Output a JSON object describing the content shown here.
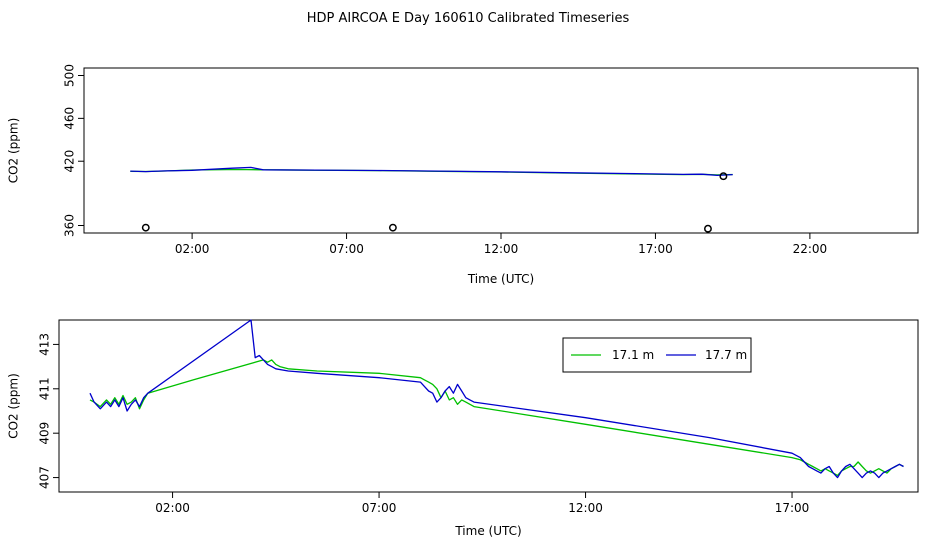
{
  "title": "HDP AIRCOA E  Day 160610  Calibrated Timeseries",
  "colors": {
    "green": "#00c000",
    "blue": "#0000cc",
    "black": "#000000"
  },
  "chart_data": [
    {
      "type": "line",
      "xlabel": "Time (UTC)",
      "ylabel": "CO2 (ppm)",
      "xlim": [
        -1.5,
        25.5
      ],
      "ylim": [
        353,
        507
      ],
      "x_ticks": [
        2,
        7,
        12,
        17,
        22
      ],
      "x_tick_labels": [
        "02:00",
        "07:00",
        "12:00",
        "17:00",
        "22:00"
      ],
      "y_ticks": [
        360,
        420,
        460,
        500
      ],
      "y_tick_labels": [
        "360",
        "420",
        "460",
        "500"
      ],
      "series": [
        {
          "color": "green",
          "x": [
            0,
            0.5,
            1,
            2,
            3.5,
            4.3,
            6,
            8,
            10,
            12,
            14,
            16,
            17.9,
            18.5,
            19.0,
            19.5
          ],
          "y": [
            410.5,
            410.4,
            410.8,
            411.8,
            412.3,
            412.0,
            411.6,
            411.2,
            410.6,
            409.9,
            409.0,
            408.2,
            407.5,
            407.8,
            407.2,
            407.6
          ]
        },
        {
          "color": "blue",
          "x": [
            0,
            0.5,
            1,
            2,
            3.3,
            3.9,
            4.3,
            6,
            8,
            10,
            12,
            14,
            16,
            17.9,
            18.5,
            19.0,
            19.5
          ],
          "y": [
            410.8,
            410.3,
            410.9,
            411.5,
            413.5,
            414.2,
            412.0,
            411.7,
            411.3,
            410.8,
            410.1,
            409.3,
            408.5,
            407.7,
            407.9,
            406.8,
            407.5
          ]
        },
        {
          "color": "black",
          "marker": "o",
          "x": [
            0.5,
            8.5,
            18.7,
            19.2
          ],
          "y": [
            358,
            358,
            357,
            406
          ]
        }
      ]
    },
    {
      "type": "line",
      "xlabel": "Time (UTC)",
      "ylabel": "CO2 (ppm)",
      "xlim": [
        -0.75,
        20.05
      ],
      "ylim": [
        406.35,
        414.1
      ],
      "x_ticks": [
        2,
        7,
        12,
        17
      ],
      "x_tick_labels": [
        "02:00",
        "07:00",
        "12:00",
        "17:00"
      ],
      "y_ticks": [
        407,
        409,
        411,
        413
      ],
      "y_tick_labels": [
        "407",
        "409",
        "411",
        "413"
      ],
      "legend": "top-right",
      "series": [
        {
          "name": "17.1 m",
          "color": "green",
          "x": [
            0,
            0.1,
            0.25,
            0.4,
            0.5,
            0.6,
            0.7,
            0.8,
            0.9,
            1.0,
            1.1,
            1.2,
            1.3,
            1.4,
            2.5,
            4.2,
            4.3,
            4.4,
            4.5,
            4.6,
            4.8,
            5.5,
            7.0,
            8.0,
            8.1,
            8.2,
            8.3,
            8.4,
            8.5,
            8.6,
            8.7,
            8.8,
            8.9,
            9.0,
            9.1,
            9.2,
            9.3,
            12.0,
            15.0,
            17.0,
            17.2,
            17.3,
            17.4,
            17.5,
            17.6,
            17.7,
            17.8,
            17.9,
            18.0,
            18.1,
            18.2,
            18.3,
            18.4,
            18.5,
            18.6,
            18.7,
            18.8,
            18.9,
            19.0,
            19.1,
            19.2,
            19.3,
            19.4,
            19.5,
            19.6,
            19.7
          ],
          "y": [
            410.5,
            410.4,
            410.2,
            410.5,
            410.3,
            410.6,
            410.3,
            410.7,
            410.3,
            410.4,
            410.6,
            410.1,
            410.5,
            410.8,
            411.4,
            412.3,
            412.2,
            412.3,
            412.1,
            412.0,
            411.9,
            411.8,
            411.7,
            411.5,
            411.4,
            411.3,
            411.2,
            411.0,
            410.6,
            410.9,
            410.5,
            410.6,
            410.3,
            410.5,
            410.4,
            410.3,
            410.2,
            409.4,
            408.5,
            407.9,
            407.8,
            407.7,
            407.6,
            407.5,
            407.4,
            407.3,
            407.4,
            407.3,
            407.2,
            407.1,
            407.3,
            407.4,
            407.5,
            407.5,
            407.7,
            407.5,
            407.3,
            407.2,
            407.3,
            407.4,
            407.3,
            407.2,
            407.4,
            407.5,
            407.6,
            407.5
          ],
          "note": ""
        },
        {
          "name": "17.7 m",
          "color": "blue",
          "x": [
            0,
            0.1,
            0.25,
            0.4,
            0.5,
            0.6,
            0.7,
            0.8,
            0.9,
            1.0,
            1.1,
            1.2,
            1.3,
            1.4,
            3.9,
            4.0,
            4.1,
            4.2,
            4.3,
            4.4,
            4.5,
            4.8,
            5.5,
            7.0,
            8.0,
            8.1,
            8.2,
            8.3,
            8.4,
            8.5,
            8.6,
            8.7,
            8.8,
            8.9,
            9.0,
            9.1,
            9.2,
            9.3,
            12.0,
            15.0,
            17.0,
            17.2,
            17.3,
            17.4,
            17.5,
            17.6,
            17.7,
            17.8,
            17.9,
            18.0,
            18.1,
            18.2,
            18.3,
            18.4,
            18.5,
            18.6,
            18.7,
            18.8,
            18.9,
            19.0,
            19.1,
            19.2,
            19.3,
            19.4,
            19.5,
            19.6,
            19.7
          ],
          "y": [
            410.8,
            410.4,
            410.1,
            410.4,
            410.2,
            410.5,
            410.2,
            410.6,
            410.0,
            410.3,
            410.5,
            410.2,
            410.6,
            410.8,
            414.1,
            412.4,
            412.5,
            412.3,
            412.1,
            412.0,
            411.9,
            411.8,
            411.7,
            411.5,
            411.3,
            411.1,
            410.9,
            410.8,
            410.4,
            410.6,
            410.9,
            411.1,
            410.8,
            411.2,
            410.9,
            410.6,
            410.5,
            410.4,
            409.7,
            408.8,
            408.1,
            407.9,
            407.7,
            407.5,
            407.4,
            407.3,
            407.2,
            407.4,
            407.5,
            407.2,
            407.0,
            407.3,
            407.5,
            407.6,
            407.4,
            407.2,
            407.0,
            407.2,
            407.3,
            407.2,
            407.0,
            407.2,
            407.3,
            407.4,
            407.5,
            407.6,
            407.5
          ],
          "note": ""
        }
      ]
    }
  ]
}
